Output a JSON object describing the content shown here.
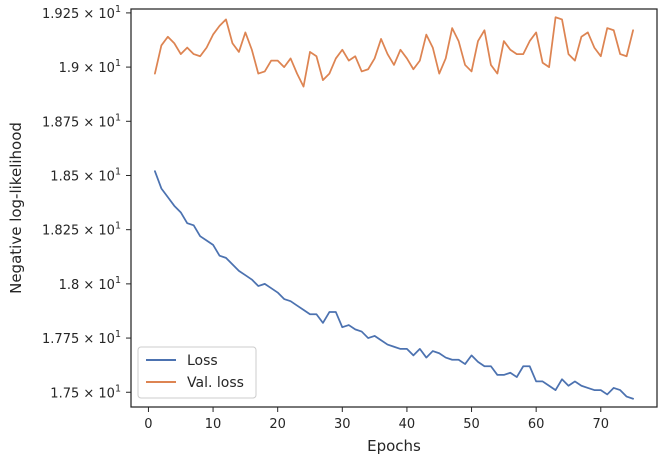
{
  "chart_data": {
    "type": "line",
    "xlabel": "Epochs",
    "ylabel": "Negative log-likelihood",
    "xlim": [
      -2.7,
      78.7
    ],
    "ylim": [
      17.432,
      19.268
    ],
    "x_ticks": [
      0,
      10,
      20,
      30,
      40,
      50,
      60,
      70
    ],
    "x_tick_labels": [
      "0",
      "10",
      "20",
      "30",
      "40",
      "50",
      "60",
      "70"
    ],
    "y_ticks": [
      17.5,
      17.75,
      18.0,
      18.25,
      18.5,
      18.75,
      19.0,
      19.25
    ],
    "y_tick_labels": [
      {
        "mantissa": "1.75",
        "base": "10",
        "exp": "1"
      },
      {
        "mantissa": "1.775",
        "base": "10",
        "exp": "1"
      },
      {
        "mantissa": "1.8",
        "base": "10",
        "exp": "1"
      },
      {
        "mantissa": "1.825",
        "base": "10",
        "exp": "1"
      },
      {
        "mantissa": "1.85",
        "base": "10",
        "exp": "1"
      },
      {
        "mantissa": "1.875",
        "base": "10",
        "exp": "1"
      },
      {
        "mantissa": "1.9",
        "base": "10",
        "exp": "1"
      },
      {
        "mantissa": "1.925",
        "base": "10",
        "exp": "1"
      }
    ],
    "grid": false,
    "legend_position": "lower-left",
    "x": [
      1,
      2,
      3,
      4,
      5,
      6,
      7,
      8,
      9,
      10,
      11,
      12,
      13,
      14,
      15,
      16,
      17,
      18,
      19,
      20,
      21,
      22,
      23,
      24,
      25,
      26,
      27,
      28,
      29,
      30,
      31,
      32,
      33,
      34,
      35,
      36,
      37,
      38,
      39,
      40,
      41,
      42,
      43,
      44,
      45,
      46,
      47,
      48,
      49,
      50,
      51,
      52,
      53,
      54,
      55,
      56,
      57,
      58,
      59,
      60,
      61,
      62,
      63,
      64,
      65,
      66,
      67,
      68,
      69,
      70,
      71,
      72,
      73,
      74,
      75
    ],
    "series": [
      {
        "name": "Loss",
        "color": "#4c72b0",
        "values": [
          18.52,
          18.44,
          18.4,
          18.36,
          18.33,
          18.28,
          18.27,
          18.22,
          18.2,
          18.18,
          18.13,
          18.12,
          18.09,
          18.06,
          18.04,
          18.02,
          17.99,
          18.0,
          17.98,
          17.96,
          17.93,
          17.92,
          17.9,
          17.88,
          17.86,
          17.86,
          17.82,
          17.87,
          17.87,
          17.8,
          17.81,
          17.79,
          17.78,
          17.75,
          17.76,
          17.74,
          17.72,
          17.71,
          17.7,
          17.7,
          17.67,
          17.7,
          17.66,
          17.69,
          17.68,
          17.66,
          17.65,
          17.65,
          17.63,
          17.67,
          17.64,
          17.62,
          17.62,
          17.58,
          17.58,
          17.59,
          17.57,
          17.62,
          17.62,
          17.55,
          17.55,
          17.53,
          17.51,
          17.56,
          17.53,
          17.55,
          17.53,
          17.52,
          17.51,
          17.51,
          17.49,
          17.52,
          17.51,
          17.48,
          17.47
        ]
      },
      {
        "name": "Val. loss",
        "color": "#dd8452",
        "values": [
          18.97,
          19.1,
          19.14,
          19.11,
          19.06,
          19.09,
          19.06,
          19.05,
          19.09,
          19.15,
          19.19,
          19.22,
          19.11,
          19.07,
          19.16,
          19.08,
          18.97,
          18.98,
          19.03,
          19.03,
          19.0,
          19.04,
          18.97,
          18.91,
          19.07,
          19.05,
          18.94,
          18.97,
          19.04,
          19.08,
          19.03,
          19.05,
          18.98,
          18.99,
          19.04,
          19.13,
          19.06,
          19.01,
          19.08,
          19.04,
          18.99,
          19.03,
          19.15,
          19.09,
          18.97,
          19.04,
          19.18,
          19.12,
          19.01,
          18.98,
          19.12,
          19.17,
          19.01,
          18.97,
          19.12,
          19.08,
          19.06,
          19.06,
          19.12,
          19.16,
          19.02,
          19.0,
          19.23,
          19.22,
          19.06,
          19.03,
          19.14,
          19.16,
          19.09,
          19.05,
          19.18,
          19.17,
          19.06,
          19.05,
          19.17
        ]
      }
    ]
  }
}
